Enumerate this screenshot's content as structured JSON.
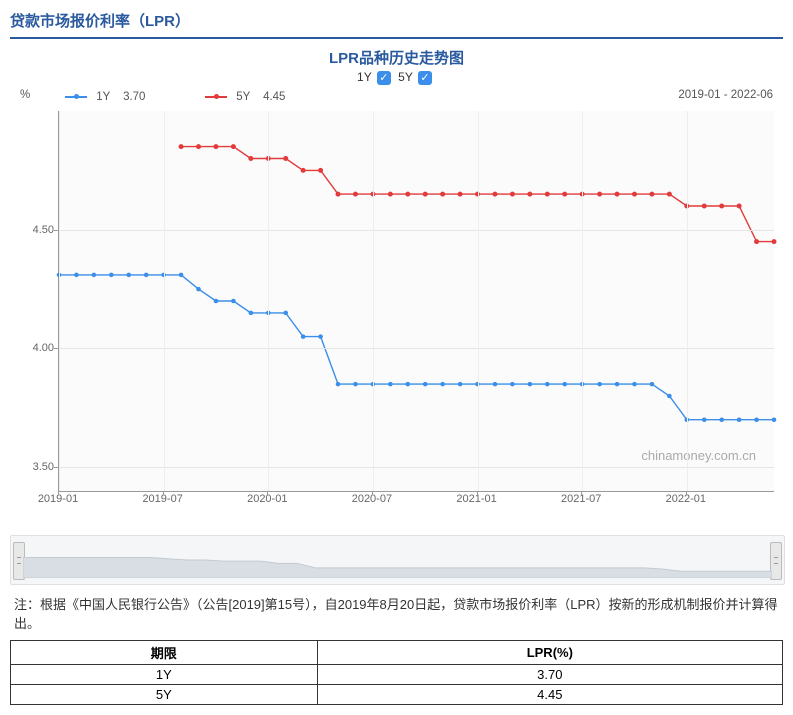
{
  "header_title": "贷款市场报价利率（LPR）",
  "chart": {
    "title": "LPR品种历史走势图",
    "legend_controls": [
      {
        "label": "1Y",
        "checked": true
      },
      {
        "label": "5Y",
        "checked": true
      }
    ],
    "y_unit": "%",
    "series_legend": [
      {
        "name": "1Y",
        "current": "3.70",
        "color": "#3b8ee9"
      },
      {
        "name": "5Y",
        "current": "4.45",
        "color": "#e23b3b"
      }
    ],
    "date_range": "2019-01 - 2022-06",
    "watermark": "chinamoney.com.cn",
    "ylim": [
      3.4,
      5.0
    ],
    "yticks": [
      3.5,
      4.0,
      4.5
    ],
    "x_start": "2019-01",
    "x_end": "2022-06",
    "x_count": 42,
    "xticks": [
      {
        "i": 0,
        "label": "2019-01"
      },
      {
        "i": 6,
        "label": "2019-07"
      },
      {
        "i": 12,
        "label": "2020-01"
      },
      {
        "i": 18,
        "label": "2020-07"
      },
      {
        "i": 24,
        "label": "2021-01"
      },
      {
        "i": 30,
        "label": "2021-07"
      },
      {
        "i": 36,
        "label": "2022-01"
      }
    ],
    "series": {
      "oneY": {
        "color": "#3b8ee9",
        "marker": "circle",
        "marker_size": 2.3,
        "line_width": 1.4,
        "start_index": 0,
        "values": [
          4.31,
          4.31,
          4.31,
          4.31,
          4.31,
          4.31,
          4.31,
          4.31,
          4.25,
          4.2,
          4.2,
          4.15,
          4.15,
          4.15,
          4.05,
          4.05,
          3.85,
          3.85,
          3.85,
          3.85,
          3.85,
          3.85,
          3.85,
          3.85,
          3.85,
          3.85,
          3.85,
          3.85,
          3.85,
          3.85,
          3.85,
          3.85,
          3.85,
          3.85,
          3.85,
          3.8,
          3.7,
          3.7,
          3.7,
          3.7,
          3.7,
          3.7
        ]
      },
      "fiveY": {
        "color": "#e23b3b",
        "marker": "circle",
        "marker_size": 2.5,
        "line_width": 1.4,
        "start_index": 7,
        "values": [
          4.85,
          4.85,
          4.85,
          4.85,
          4.8,
          4.8,
          4.8,
          4.75,
          4.75,
          4.65,
          4.65,
          4.65,
          4.65,
          4.65,
          4.65,
          4.65,
          4.65,
          4.65,
          4.65,
          4.65,
          4.65,
          4.65,
          4.65,
          4.65,
          4.65,
          4.65,
          4.65,
          4.65,
          4.65,
          4.6,
          4.6,
          4.6,
          4.6,
          4.45,
          4.45
        ]
      }
    },
    "background_color": "#fbfbfb",
    "grid_color": "#e5e5e5"
  },
  "footnote": "注：根据《中国人民银行公告》（公告[2019]第15号），自2019年8月20日起，贷款市场报价利率（LPR）按新的形成机制报价并计算得出。",
  "table": {
    "columns": [
      "期限",
      "LPR(%)"
    ],
    "rows": [
      [
        "1Y",
        "3.70"
      ],
      [
        "5Y",
        "4.45"
      ]
    ]
  }
}
